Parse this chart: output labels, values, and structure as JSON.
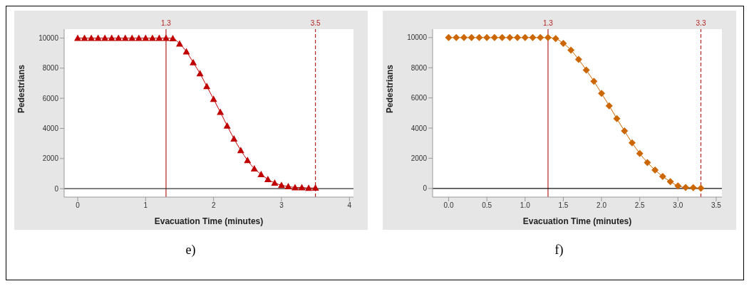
{
  "chart_data": [
    {
      "type": "line",
      "xlabel": "Evacuation Time (minutes)",
      "ylabel": "Pedestrians",
      "marker": "triangle",
      "line_style": "solid",
      "grid": false,
      "legend": false,
      "x": [
        0,
        0.1,
        0.2,
        0.3,
        0.4,
        0.5,
        0.6,
        0.7,
        0.8,
        0.9,
        1.0,
        1.1,
        1.2,
        1.3,
        1.4,
        1.5,
        1.6,
        1.7,
        1.8,
        1.9,
        2.0,
        2.1,
        2.2,
        2.3,
        2.4,
        2.5,
        2.6,
        2.7,
        2.8,
        2.9,
        3.0,
        3.1,
        3.2,
        3.3,
        3.4,
        3.5
      ],
      "series": [
        {
          "color": "#c00000",
          "values": [
            10000,
            10000,
            10000,
            10000,
            10000,
            10000,
            10000,
            10000,
            10000,
            10000,
            10000,
            10000,
            10000,
            10000,
            9980,
            9620,
            9100,
            8380,
            7650,
            6800,
            5950,
            5080,
            4180,
            3320,
            2550,
            1880,
            1330,
            950,
            620,
            380,
            230,
            150,
            80,
            80,
            40,
            50
          ]
        }
      ],
      "xlim": [
        -0.2,
        4.06
      ],
      "xticks": [
        0,
        1,
        2,
        3,
        4
      ],
      "ylim": [
        -560,
        10590
      ],
      "yticks": [
        0,
        2000,
        4000,
        6000,
        8000,
        10000
      ],
      "ref_lines": [
        {
          "axis": "x",
          "value": 1.3,
          "label": "1.3",
          "color": "#b22222",
          "line_style": "solid"
        },
        {
          "axis": "x",
          "value": 3.5,
          "label": "3.5",
          "color": "#b22222",
          "line_style": "dashed"
        },
        {
          "axis": "y",
          "value": 0,
          "color": "#333333",
          "line_style": "solid"
        }
      ],
      "annotations": [
        "e)"
      ]
    },
    {
      "type": "line",
      "xlabel": "Evacuation Time (minutes)",
      "ylabel": "Pedestrians",
      "marker": "diamond",
      "line_style": "solid",
      "grid": false,
      "legend": false,
      "x": [
        0,
        0.1,
        0.2,
        0.3,
        0.4,
        0.5,
        0.6,
        0.7,
        0.8,
        0.9,
        1.0,
        1.1,
        1.2,
        1.3,
        1.4,
        1.5,
        1.6,
        1.7,
        1.8,
        1.9,
        2.0,
        2.1,
        2.2,
        2.3,
        2.4,
        2.5,
        2.6,
        2.7,
        2.8,
        2.9,
        3.0,
        3.1,
        3.2,
        3.3
      ],
      "series": [
        {
          "color": "#cc6600",
          "values": [
            10000,
            10000,
            10000,
            10000,
            10000,
            10000,
            10000,
            10000,
            10000,
            10000,
            10000,
            10000,
            10000,
            10000,
            9930,
            9620,
            9170,
            8550,
            7850,
            7100,
            6300,
            5480,
            4630,
            3810,
            3020,
            2320,
            1720,
            1220,
            800,
            450,
            170,
            60,
            50,
            20
          ]
        }
      ],
      "xlim": [
        -0.21,
        3.575
      ],
      "xticks": [
        {
          "value": 0,
          "label": "0.0"
        },
        0.5,
        {
          "value": 1,
          "label": "1.0"
        },
        1.5,
        {
          "value": 2,
          "label": "2.0"
        },
        2.5,
        {
          "value": 3,
          "label": "3.0"
        },
        3.5
      ],
      "ylim": [
        -573,
        10558
      ],
      "yticks": [
        0,
        2000,
        4000,
        6000,
        8000,
        10000
      ],
      "ref_lines": [
        {
          "axis": "x",
          "value": 1.3,
          "label": "1.3",
          "color": "#b22222",
          "line_style": "solid"
        },
        {
          "axis": "x",
          "value": 3.3,
          "label": "3.3",
          "color": "#b22222",
          "line_style": "dashed"
        },
        {
          "axis": "y",
          "value": 0,
          "color": "#111111",
          "line_style": "solid"
        }
      ],
      "annotations": [
        "f)"
      ]
    }
  ]
}
